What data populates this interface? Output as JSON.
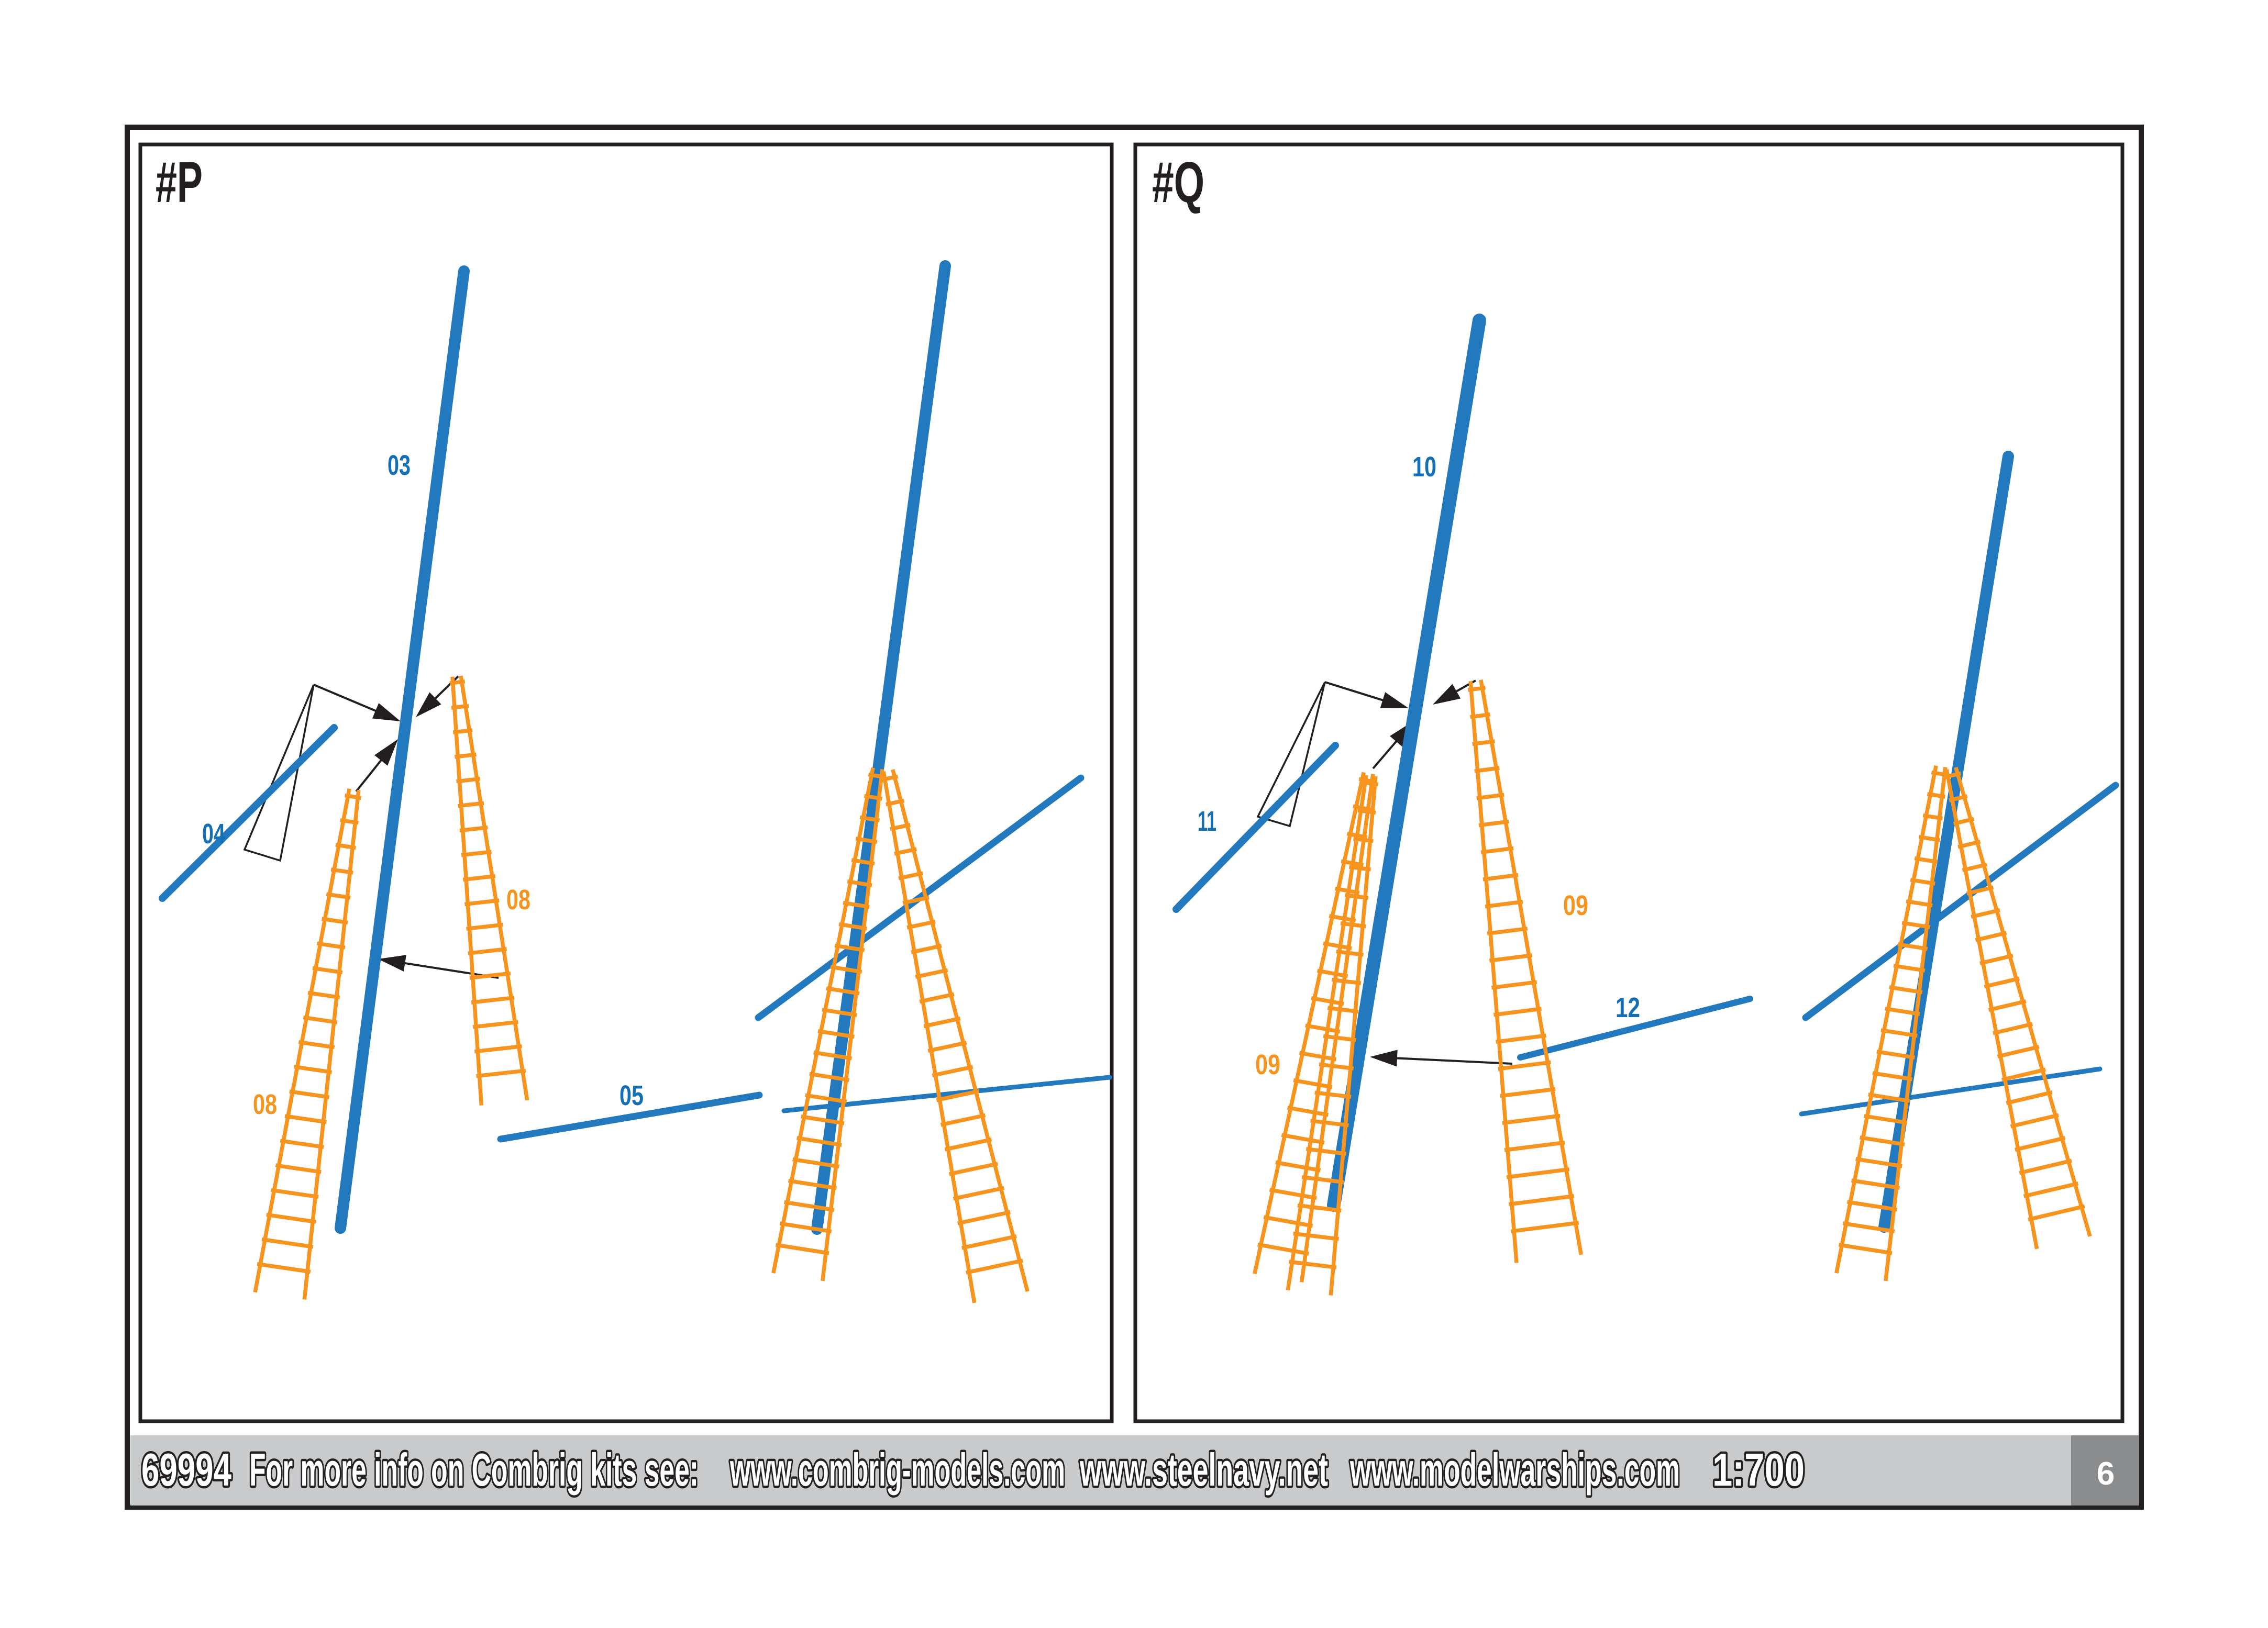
{
  "page": {
    "page_number": "6"
  },
  "footer": {
    "kit_number": "69994",
    "info_label": "For more info on Combrig kits see:",
    "link_combrig": "www.combrig-models.com",
    "link_steelnavy": "www.steelnavy.net",
    "link_modelwarships": "www.modelwarships.com",
    "scale": "1:700"
  },
  "panels": {
    "p": {
      "title": "#P",
      "labels": {
        "mast": "03",
        "short_yard": "04",
        "long_yard": "05",
        "ladder_left": "08",
        "ladder_right": "08"
      }
    },
    "q": {
      "title": "#Q",
      "labels": {
        "mast": "10",
        "short_yard": "11",
        "long_yard": "12",
        "ladder_left": "09",
        "ladder_right": "09"
      }
    }
  },
  "colors": {
    "rod_blue": "#2279be",
    "label_blue": "#146fb5",
    "ladder_orange": "#f7941e",
    "label_orange": "#f7941e",
    "ink": "#231f20",
    "footer_bar": "#c9cacb",
    "page_box": "#8a8c8e"
  }
}
